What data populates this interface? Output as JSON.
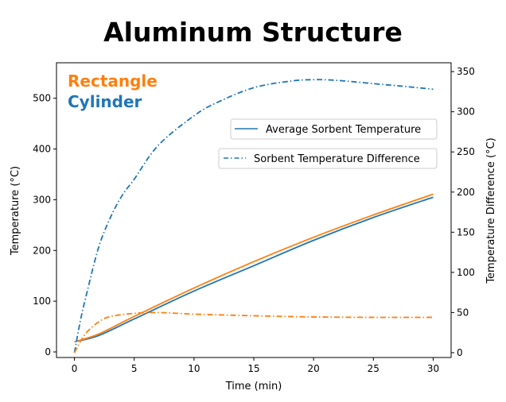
{
  "chart_data": {
    "type": "line",
    "title": "Aluminum Structure",
    "xlabel": "Time (min)",
    "ylabel": "Temperature (°C)",
    "y2label": "Temperature Difference (°C)",
    "xlim": [
      -1.5,
      31.5
    ],
    "ylim": [
      -11,
      570
    ],
    "y2lim": [
      -6,
      361
    ],
    "xticks": [
      0,
      5,
      10,
      15,
      20,
      25,
      30
    ],
    "yticks": [
      0,
      100,
      200,
      300,
      400,
      500
    ],
    "y2ticks": [
      0,
      50,
      100,
      150,
      200,
      250,
      300,
      350
    ],
    "grid": false,
    "annotations": [
      {
        "text": "Rectangle",
        "color": "#ff7f0e"
      },
      {
        "text": "Cylinder",
        "color": "#1f77b4"
      }
    ],
    "legend": [
      {
        "label": "Average Sorbent Temperature",
        "style": "solid",
        "placement": "right"
      },
      {
        "label": "Sorbent Temperature Difference",
        "style": "dashdot",
        "placement": "right"
      }
    ],
    "series": [
      {
        "group": "Cylinder",
        "kind": "Average Sorbent Temperature",
        "axis": "left",
        "color": "#1f77b4",
        "style": "solid",
        "x": [
          0,
          2,
          5,
          10,
          15,
          20,
          25,
          30
        ],
        "y": [
          20,
          32,
          65,
          120,
          170,
          220,
          265,
          305
        ]
      },
      {
        "group": "Rectangle",
        "kind": "Average Sorbent Temperature",
        "axis": "left",
        "color": "#ff7f0e",
        "style": "solid",
        "x": [
          0,
          2,
          5,
          10,
          15,
          20,
          25,
          30
        ],
        "y": [
          20,
          35,
          70,
          126,
          178,
          226,
          270,
          311
        ]
      },
      {
        "group": "Cylinder",
        "kind": "Sorbent Temperature Difference",
        "axis": "right",
        "color": "#1f77b4",
        "style": "dashdot",
        "x": [
          0,
          0.5,
          1,
          2,
          3,
          4,
          5,
          7,
          10,
          12,
          15,
          18,
          20,
          22,
          25,
          28,
          30
        ],
        "y": [
          0,
          40,
          72,
          130,
          168,
          196,
          216,
          258,
          295,
          312,
          330,
          338,
          340,
          339,
          335,
          331,
          328
        ]
      },
      {
        "group": "Rectangle",
        "kind": "Sorbent Temperature Difference",
        "axis": "right",
        "color": "#ff7f0e",
        "style": "dashdot",
        "x": [
          0,
          0.5,
          1,
          2,
          3,
          5,
          7,
          10,
          15,
          20,
          25,
          30
        ],
        "y": [
          0,
          14,
          25,
          38,
          45,
          49,
          50,
          48,
          46,
          44.5,
          44,
          44
        ]
      }
    ]
  }
}
